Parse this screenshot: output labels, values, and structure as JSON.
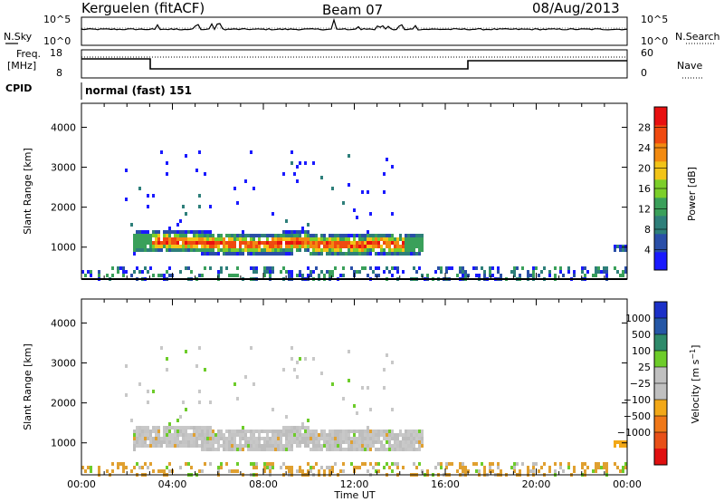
{
  "header": {
    "station": "Kerguelen (fitACF)",
    "beam": "Beam 07",
    "date": "08/Aug/2013"
  },
  "top_panels": {
    "nsky_label": "N.Sky",
    "nsky_ticks": [
      "10^5",
      "10^0"
    ],
    "nsearch_label": "N.Search",
    "nsearch_ticks": [
      "10^5",
      "10^0"
    ],
    "freq_label_1": "Freq.",
    "freq_label_2": "[MHz]",
    "freq_ticks": [
      "18",
      "8"
    ],
    "nave_label": "Nave",
    "nave_ticks": [
      "60",
      "0"
    ],
    "cpid_label": "CPID",
    "cpid_text": "normal (fast) 151"
  },
  "colors": {
    "power_scale": [
      "#1a1aff",
      "#2a4fa8",
      "#2e7f7a",
      "#3aa05a",
      "#7ccf2a",
      "#f2c418",
      "#f28a10",
      "#f04a10",
      "#e81010"
    ],
    "velocity_scale": [
      "#1b30c8",
      "#2557a6",
      "#2e8a6a",
      "#6dcc2a",
      "#c0c0c0",
      "#c0c0c0",
      "#f2a818",
      "#f07818",
      "#e85018",
      "#e01010"
    ]
  },
  "chart_data": [
    {
      "type": "heatmap",
      "panel": "power",
      "ylabel": "Slant Range [km]",
      "xlabel": "Time UT",
      "colorbar_label": "Power [dB]",
      "x_ticks": [
        "00:00",
        "04:00",
        "08:00",
        "12:00",
        "16:00",
        "20:00",
        "00:00"
      ],
      "xlim_hours": [
        0,
        24
      ],
      "ylim": [
        200,
        4600
      ],
      "y_ticks": [
        1000,
        2000,
        3000,
        4000
      ],
      "colorbar_ticks": [
        "28",
        "24",
        "20",
        "16",
        "12",
        "8",
        "4"
      ],
      "colorbar_range": [
        0,
        32
      ],
      "main_echo_band": {
        "start_hour": 2.2,
        "end_hour": 15.0,
        "range_km": [
          900,
          1500
        ],
        "peak_power_db": 28
      },
      "late_echo": {
        "start_hour": 23.4,
        "end_hour": 24.0,
        "range_km": [
          950,
          1150
        ]
      }
    },
    {
      "type": "heatmap",
      "panel": "velocity",
      "ylabel": "Slant Range [km]",
      "xlabel": "Time UT",
      "colorbar_label": "Velocity [m s^-1]",
      "x_ticks": [
        "00:00",
        "04:00",
        "08:00",
        "12:00",
        "16:00",
        "20:00",
        "00:00"
      ],
      "xlim_hours": [
        0,
        24
      ],
      "ylim": [
        200,
        4600
      ],
      "y_ticks": [
        1000,
        2000,
        3000,
        4000
      ],
      "colorbar_ticks": [
        "1000",
        "500",
        "100",
        "25",
        "-25",
        "-100",
        "-500",
        "-1000"
      ]
    }
  ]
}
